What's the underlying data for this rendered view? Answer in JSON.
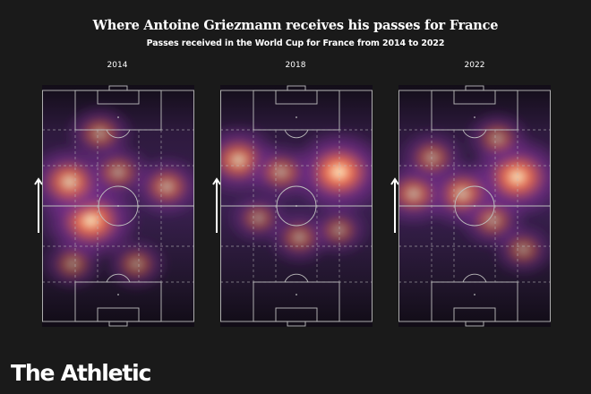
{
  "title": "Where Antoine Griezmann receives his passes for France",
  "subtitle": "Passes received in the World Cup for France from 2014 to 2022",
  "brand": "The Athletic",
  "colors": {
    "background": "#1a1a1a",
    "heat_low": "#15101c",
    "heat_mid": "#7a2f8e",
    "heat_high": "#f2704f",
    "heat_peak": "#fff4c8",
    "lines": "#bdbdbd"
  },
  "chart_data": [
    {
      "type": "heatmap",
      "title": "2014",
      "hotspots": [
        {
          "x": 0.32,
          "y": 0.56,
          "intensity": 0.95
        },
        {
          "x": 0.18,
          "y": 0.4,
          "intensity": 0.78
        },
        {
          "x": 0.82,
          "y": 0.42,
          "intensity": 0.5
        },
        {
          "x": 0.38,
          "y": 0.2,
          "intensity": 0.4
        },
        {
          "x": 0.5,
          "y": 0.36,
          "intensity": 0.4
        },
        {
          "x": 0.62,
          "y": 0.74,
          "intensity": 0.3
        },
        {
          "x": 0.2,
          "y": 0.74,
          "intensity": 0.28
        }
      ]
    },
    {
      "type": "heatmap",
      "title": "2018",
      "hotspots": [
        {
          "x": 0.78,
          "y": 0.36,
          "intensity": 1.0
        },
        {
          "x": 0.12,
          "y": 0.31,
          "intensity": 0.72
        },
        {
          "x": 0.4,
          "y": 0.36,
          "intensity": 0.45
        },
        {
          "x": 0.52,
          "y": 0.63,
          "intensity": 0.35
        },
        {
          "x": 0.25,
          "y": 0.55,
          "intensity": 0.28
        },
        {
          "x": 0.78,
          "y": 0.6,
          "intensity": 0.28
        }
      ]
    },
    {
      "type": "heatmap",
      "title": "2022",
      "hotspots": [
        {
          "x": 0.78,
          "y": 0.38,
          "intensity": 0.95
        },
        {
          "x": 0.42,
          "y": 0.45,
          "intensity": 0.65
        },
        {
          "x": 0.1,
          "y": 0.45,
          "intensity": 0.55
        },
        {
          "x": 0.22,
          "y": 0.3,
          "intensity": 0.4
        },
        {
          "x": 0.62,
          "y": 0.56,
          "intensity": 0.4
        },
        {
          "x": 0.65,
          "y": 0.22,
          "intensity": 0.35
        },
        {
          "x": 0.82,
          "y": 0.68,
          "intensity": 0.3
        }
      ]
    }
  ]
}
